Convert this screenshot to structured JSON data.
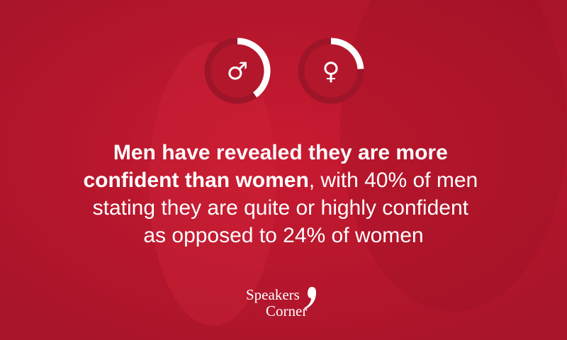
{
  "chart_data": [
    {
      "type": "donut",
      "symbol": "♂",
      "values": [
        40
      ],
      "color": "#ffffff"
    },
    {
      "type": "donut",
      "symbol": "♀",
      "values": [
        24
      ],
      "color": "#ffffff"
    }
  ],
  "headline": {
    "line1": "Men have revealed they are more",
    "line2_bold": "confident than women",
    "line2": ", with 40% of men",
    "line3": "stating they are quite or highly confident",
    "line4": "as opposed to 24% of women"
  },
  "logo": {
    "line1": "Speakers",
    "line2": "Corner"
  }
}
